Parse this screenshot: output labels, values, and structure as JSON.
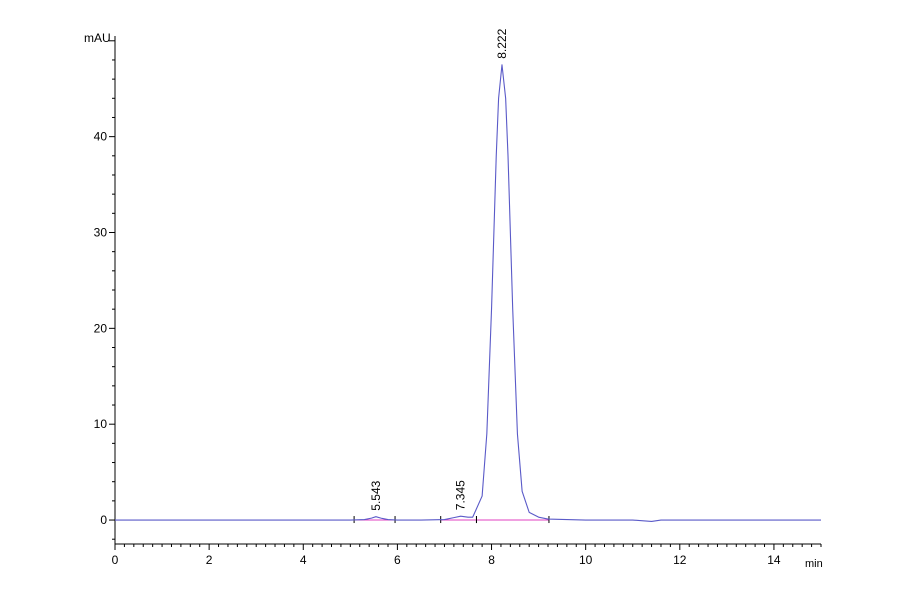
{
  "chart_data": {
    "type": "line",
    "title": "",
    "xlabel": "min",
    "ylabel": "mAU",
    "xlim": [
      0,
      15
    ],
    "ylim": [
      -2.5,
      50.5
    ],
    "x_ticks": [
      0,
      2,
      4,
      6,
      8,
      10,
      12,
      14
    ],
    "y_ticks": [
      0,
      10,
      20,
      30,
      40
    ],
    "grid": false,
    "legend": "none",
    "colors": {
      "trace": "#5a5ac8",
      "baseline": "#e040c0",
      "axis": "#000000"
    },
    "series": [
      {
        "x": [
          0,
          1,
          2,
          3,
          4,
          5.0,
          5.3,
          5.45,
          5.543,
          5.65,
          5.8,
          6.0,
          6.5,
          7.0,
          7.2,
          7.345,
          7.5,
          7.6,
          7.8,
          7.9,
          8.0,
          8.1,
          8.15,
          8.222,
          8.3,
          8.35,
          8.45,
          8.55,
          8.65,
          8.8,
          9.0,
          9.2,
          10,
          11,
          11.4,
          11.6,
          12,
          13,
          14,
          15
        ],
        "y": [
          0,
          0,
          0,
          0,
          0,
          0,
          0.05,
          0.2,
          0.35,
          0.2,
          0.05,
          0,
          0,
          0.05,
          0.25,
          0.4,
          0.3,
          0.3,
          2.5,
          9,
          22,
          38,
          44,
          47.5,
          44,
          38,
          22,
          9,
          3,
          0.8,
          0.3,
          0.1,
          0,
          0,
          -0.15,
          0,
          0,
          0,
          0,
          0
        ]
      }
    ],
    "peaks": [
      {
        "rt": 5.543,
        "label": "5.543",
        "start": 5.08,
        "end": 5.95
      },
      {
        "rt": 7.345,
        "label": "7.345",
        "start": 6.92,
        "end": 7.68
      },
      {
        "rt": 8.222,
        "label": "8.222",
        "start": 7.68,
        "end": 9.22
      }
    ]
  }
}
